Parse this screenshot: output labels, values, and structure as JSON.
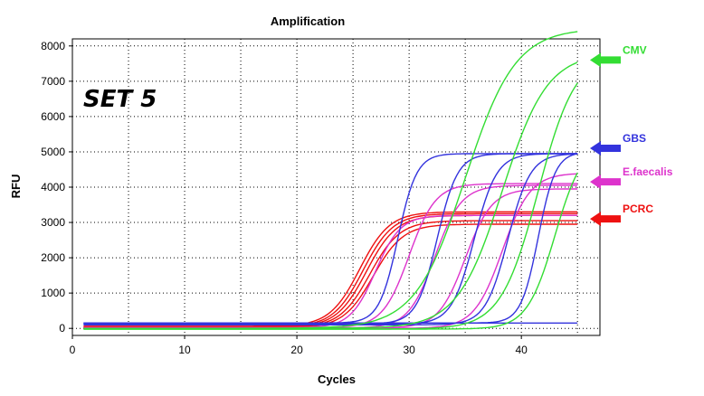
{
  "chart_data": {
    "type": "line",
    "title": "Amplification",
    "xlabel": "Cycles",
    "ylabel": "RFU",
    "xlim": [
      0,
      47
    ],
    "ylim": [
      -200,
      8200
    ],
    "xticks": [
      0,
      10,
      20,
      30,
      40
    ],
    "yticks": [
      0,
      1000,
      2000,
      3000,
      4000,
      5000,
      6000,
      7000,
      8000
    ],
    "grid": true,
    "set_label": "SET 5",
    "annotations": [
      {
        "label": "CMV",
        "color": "#33dd33",
        "value": 7600
      },
      {
        "label": "GBS",
        "color": "#3333dd",
        "value": 5100
      },
      {
        "label": "E.faecalis",
        "color": "#dd33cc",
        "value": 4150
      },
      {
        "label": "PCRC",
        "color": "#ee1111",
        "value": 3100
      }
    ],
    "series": [
      {
        "target": "PCRC",
        "color": "#ee1111",
        "x_start": 1,
        "x_end": 45,
        "baseline": 60,
        "plateau": 3300,
        "midpoint": 25.6,
        "slope": 0.75
      },
      {
        "target": "PCRC",
        "color": "#ee1111",
        "x_start": 1,
        "x_end": 45,
        "baseline": 40,
        "plateau": 3250,
        "midpoint": 25.9,
        "slope": 0.75
      },
      {
        "target": "PCRC",
        "color": "#ee1111",
        "x_start": 1,
        "x_end": 45,
        "baseline": 30,
        "plateau": 3200,
        "midpoint": 26.2,
        "slope": 0.75
      },
      {
        "target": "PCRC",
        "color": "#ee1111",
        "x_start": 1,
        "x_end": 45,
        "baseline": 20,
        "plateau": 3050,
        "midpoint": 26.5,
        "slope": 0.75
      },
      {
        "target": "PCRC",
        "color": "#ee1111",
        "x_start": 1,
        "x_end": 45,
        "baseline": 10,
        "plateau": 2950,
        "midpoint": 26.8,
        "slope": 0.75
      },
      {
        "target": "E.faecalis",
        "color": "#dd33cc",
        "x_start": 1,
        "x_end": 45,
        "baseline": 20,
        "plateau": 3200,
        "midpoint": 27.0,
        "slope": 0.9
      },
      {
        "target": "E.faecalis",
        "color": "#dd33cc",
        "x_start": 1,
        "x_end": 45,
        "baseline": 20,
        "plateau": 4100,
        "midpoint": 30.0,
        "slope": 0.85
      },
      {
        "target": "E.faecalis",
        "color": "#dd33cc",
        "x_start": 1,
        "x_end": 45,
        "baseline": 10,
        "plateau": 4050,
        "midpoint": 32.3,
        "slope": 0.85
      },
      {
        "target": "E.faecalis",
        "color": "#dd33cc",
        "x_start": 1,
        "x_end": 45,
        "baseline": 10,
        "plateau": 3950,
        "midpoint": 35.0,
        "slope": 0.85
      },
      {
        "target": "E.faecalis",
        "color": "#dd33cc",
        "x_start": 1,
        "x_end": 45,
        "baseline": 0,
        "plateau": 4400,
        "midpoint": 38.3,
        "slope": 0.8
      },
      {
        "target": "GBS",
        "color": "#3333dd",
        "x_start": 1,
        "x_end": 45,
        "baseline": 150,
        "plateau": 4950,
        "midpoint": 29.0,
        "slope": 1.2
      },
      {
        "target": "GBS",
        "color": "#3333dd",
        "x_start": 1,
        "x_end": 45,
        "baseline": 130,
        "plateau": 4950,
        "midpoint": 32.5,
        "slope": 1.1
      },
      {
        "target": "GBS",
        "color": "#3333dd",
        "x_start": 1,
        "x_end": 45,
        "baseline": 120,
        "plateau": 4950,
        "midpoint": 35.8,
        "slope": 1.0
      },
      {
        "target": "GBS",
        "color": "#3333dd",
        "x_start": 1,
        "x_end": 45,
        "baseline": 100,
        "plateau": 4950,
        "midpoint": 38.8,
        "slope": 1.0
      },
      {
        "target": "GBS",
        "color": "#3333dd",
        "x_start": 1,
        "x_end": 45,
        "baseline": 150,
        "plateau": 5000,
        "midpoint": 41.5,
        "slope": 1.3
      },
      {
        "target": "GBS",
        "color": "#3333dd",
        "x_start": 1,
        "x_end": 45,
        "baseline": 150,
        "plateau": 150,
        "midpoint": 30.0,
        "slope": 1.0
      },
      {
        "target": "CMV",
        "color": "#33dd33",
        "x_start": 1,
        "x_end": 45,
        "baseline": 0,
        "plateau": 8500,
        "midpoint": 35.0,
        "slope": 0.45
      },
      {
        "target": "CMV",
        "color": "#33dd33",
        "x_start": 1,
        "x_end": 45,
        "baseline": 0,
        "plateau": 7800,
        "midpoint": 38.3,
        "slope": 0.5
      },
      {
        "target": "CMV",
        "color": "#33dd33",
        "x_start": 1,
        "x_end": 45,
        "baseline": -20,
        "plateau": 7800,
        "midpoint": 41.5,
        "slope": 0.6
      },
      {
        "target": "CMV",
        "color": "#33dd33",
        "x_start": 1,
        "x_end": 45,
        "baseline": -20,
        "plateau": 5300,
        "midpoint": 43.0,
        "slope": 0.8
      }
    ]
  }
}
